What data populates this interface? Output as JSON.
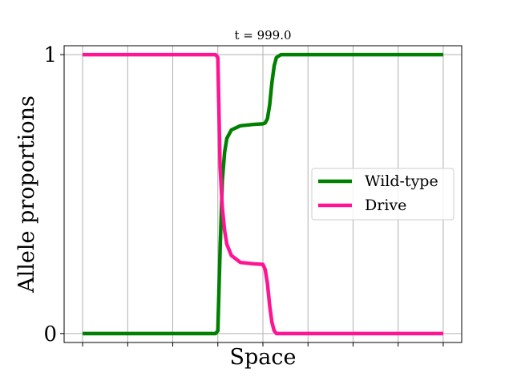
{
  "chart_data": {
    "type": "line",
    "title": "t = 999.0",
    "xlabel": "Space",
    "ylabel": "Allele proportions",
    "x": [
      0,
      2.95,
      3.0,
      3.05,
      3.1,
      3.15,
      3.2,
      3.3,
      3.5,
      3.8,
      4.0,
      4.05,
      4.1,
      4.15,
      4.2,
      4.25,
      4.3,
      4.4,
      8
    ],
    "series": [
      {
        "name": "Wild-type",
        "color": "#008000",
        "values": [
          0,
          0,
          0.01,
          0.3,
          0.55,
          0.65,
          0.7,
          0.73,
          0.745,
          0.75,
          0.752,
          0.755,
          0.77,
          0.82,
          0.9,
          0.96,
          0.99,
          1,
          1
        ]
      },
      {
        "name": "Drive",
        "color": "#ff1493",
        "values": [
          1,
          1,
          0.99,
          0.6,
          0.45,
          0.37,
          0.32,
          0.28,
          0.255,
          0.25,
          0.248,
          0.23,
          0.18,
          0.1,
          0.04,
          0.01,
          0,
          0,
          0
        ]
      }
    ],
    "xlim": [
      -0.41,
      8.41
    ],
    "xticks": [
      0,
      1,
      2,
      3,
      4,
      5,
      6,
      7,
      8
    ],
    "ylim": [
      -0.032,
      1.032
    ],
    "yticks": [
      0,
      1
    ],
    "grid": true,
    "legend": "center right"
  }
}
